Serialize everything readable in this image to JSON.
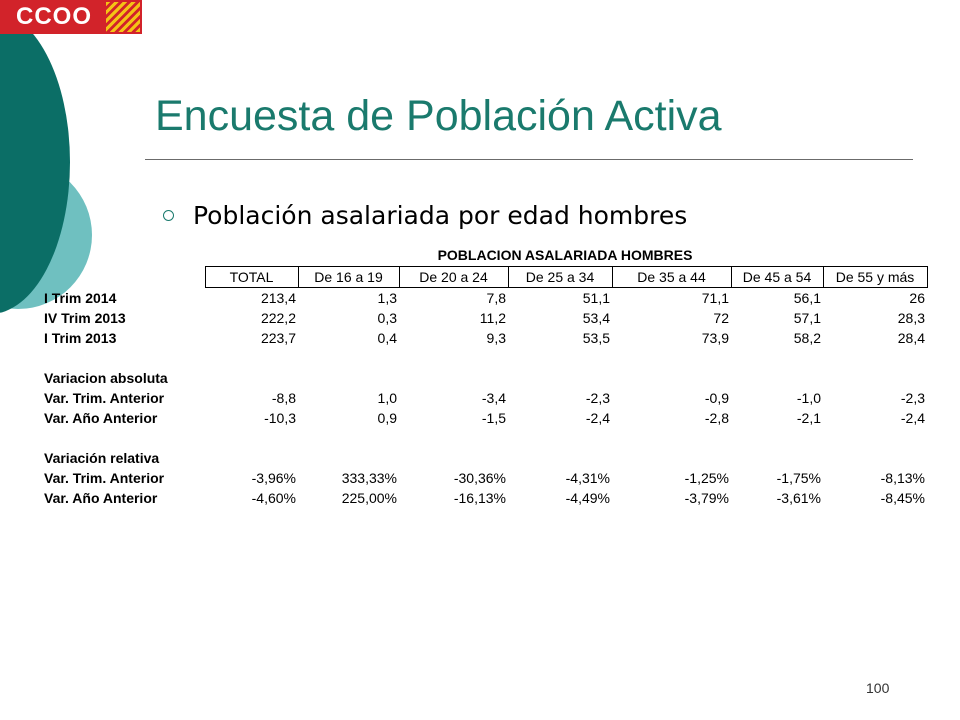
{
  "logo": {
    "text": "CCOO",
    "flag_colors": [
      "#f4c315",
      "#d2232a"
    ]
  },
  "colors": {
    "accent": "#1a7a6d",
    "dark_teal": "#0b6e66",
    "light_teal": "#6fc0c0",
    "brand_red": "#d2232a"
  },
  "title": "Encuesta de Población Activa",
  "bullet": "Población asalariada por edad hombres",
  "table": {
    "caption": "POBLACION ASALARIADA HOMBRES",
    "headers": [
      "TOTAL",
      "De 16 a 19",
      "De 20 a 24",
      "De 25 a 34",
      "De 35 a 44",
      "De 45 a 54",
      "De 55 y más"
    ],
    "rows": [
      {
        "label": "I Trim 2014",
        "values": [
          "213,4",
          "1,3",
          "7,8",
          "51,1",
          "71,1",
          "56,1",
          "26"
        ]
      },
      {
        "label": "IV Trim 2013",
        "values": [
          "222,2",
          "0,3",
          "11,2",
          "53,4",
          "72",
          "57,1",
          "28,3"
        ]
      },
      {
        "label": "I Trim 2013",
        "values": [
          "223,7",
          "0,4",
          "9,3",
          "53,5",
          "73,9",
          "58,2",
          "28,4"
        ]
      },
      {
        "label": "",
        "values": [
          "",
          "",
          "",
          "",
          "",
          "",
          ""
        ]
      },
      {
        "label": "Variacion absoluta",
        "values": [
          "",
          "",
          "",
          "",
          "",
          "",
          ""
        ]
      },
      {
        "label": "Var. Trim. Anterior",
        "values": [
          "-8,8",
          "1,0",
          "-3,4",
          "-2,3",
          "-0,9",
          "-1,0",
          "-2,3"
        ]
      },
      {
        "label": "Var. Año Anterior",
        "values": [
          "-10,3",
          "0,9",
          "-1,5",
          "-2,4",
          "-2,8",
          "-2,1",
          "-2,4"
        ]
      },
      {
        "label": "",
        "values": [
          "",
          "",
          "",
          "",
          "",
          "",
          ""
        ]
      },
      {
        "label": "Variación relativa",
        "values": [
          "",
          "",
          "",
          "",
          "",
          "",
          ""
        ]
      },
      {
        "label": "Var. Trim. Anterior",
        "values": [
          "-3,96%",
          "333,33%",
          "-30,36%",
          "-4,31%",
          "-1,25%",
          "-1,75%",
          "-8,13%"
        ]
      },
      {
        "label": "Var. Año Anterior",
        "values": [
          "-4,60%",
          "225,00%",
          "-16,13%",
          "-4,49%",
          "-3,79%",
          "-3,61%",
          "-8,45%"
        ]
      }
    ]
  },
  "page_number": "100"
}
